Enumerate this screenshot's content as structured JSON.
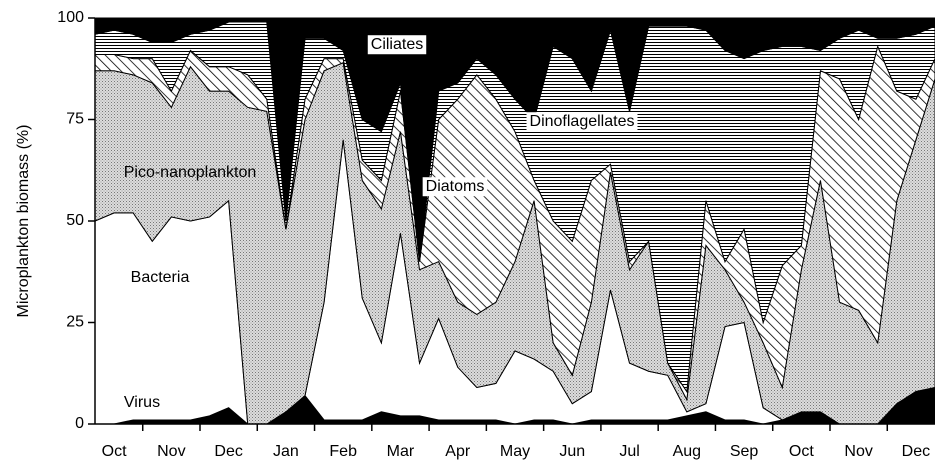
{
  "chart_data": {
    "type": "stacked-area",
    "y_label": "Microplankton biomass (%)",
    "categories": [
      null,
      "Oct",
      null,
      null,
      "Nov",
      null,
      null,
      "Dec",
      null,
      null,
      "Jan",
      null,
      null,
      "Feb",
      null,
      null,
      "Mar",
      null,
      null,
      "Apr",
      null,
      null,
      "May",
      null,
      null,
      "Jun",
      null,
      null,
      "Jul",
      null,
      null,
      "Aug",
      null,
      null,
      "Sep",
      null,
      null,
      "Oct",
      null,
      null,
      "Nov",
      null,
      null,
      "Dec",
      null
    ],
    "ylim": [
      0,
      100
    ],
    "yticks": [
      0,
      25,
      50,
      75,
      100
    ],
    "series": [
      {
        "name": "Virus",
        "color": "#000000",
        "fill": "solid",
        "values": [
          0,
          0,
          1,
          1,
          1,
          1,
          2,
          4,
          0,
          0,
          3,
          7,
          1,
          1,
          1,
          3,
          2,
          2,
          1,
          1,
          1,
          1,
          0,
          1,
          1,
          0,
          1,
          1,
          1,
          1,
          1,
          2,
          3,
          1,
          1,
          0,
          1,
          3,
          3,
          0,
          0,
          0,
          5,
          8,
          9
        ]
      },
      {
        "name": "Bacteria",
        "color": "#ffffff",
        "fill": "solid",
        "values": [
          50,
          52,
          51,
          44,
          50,
          49,
          49,
          51,
          0,
          0,
          0,
          0,
          29,
          69,
          30,
          17,
          45,
          13,
          25,
          13,
          8,
          9,
          18,
          15,
          12,
          5,
          7,
          32,
          14,
          12,
          11,
          1,
          2,
          23,
          24,
          4,
          0,
          0,
          0,
          0,
          0,
          0,
          0,
          0,
          0
        ]
      },
      {
        "name": "Pico-nanoplankton",
        "color": "#cfcfcf",
        "fill": "dots",
        "values": [
          37,
          35,
          34,
          39,
          27,
          38,
          31,
          27,
          78,
          77,
          45,
          68,
          57,
          19,
          29,
          33,
          25,
          23,
          14,
          16,
          18,
          20,
          22,
          39,
          7,
          7,
          22,
          29,
          23,
          32,
          3,
          3,
          39,
          14,
          5,
          16,
          8,
          35,
          57,
          30,
          28,
          20,
          50,
          62,
          76
        ]
      },
      {
        "name": "Diatoms",
        "color": "#000000",
        "fill": "diagonal",
        "values": [
          4,
          4,
          4,
          6,
          4,
          4,
          6,
          6,
          8,
          3,
          0,
          5,
          3,
          1,
          5,
          7,
          10,
          2,
          35,
          50,
          59,
          50,
          32,
          5,
          30,
          33,
          30,
          2,
          2,
          0,
          0,
          2,
          11,
          2,
          18,
          5,
          30,
          6,
          27,
          55,
          47,
          73,
          27,
          10,
          5
        ]
      },
      {
        "name": "Dinoflagellates",
        "color": "#000000",
        "fill": "horizontal",
        "values": [
          5,
          6,
          6,
          4,
          12,
          4,
          9,
          11,
          13,
          19,
          2,
          15,
          5,
          2,
          10,
          12,
          2,
          0,
          7,
          4,
          4,
          6,
          8,
          15,
          43,
          45,
          22,
          33,
          37,
          53,
          83,
          90,
          42,
          52,
          42,
          67,
          54,
          49,
          5,
          10,
          22,
          2,
          13,
          16,
          8
        ]
      },
      {
        "name": "Ciliates",
        "color": "#000000",
        "fill": "solid",
        "values": [
          4,
          3,
          4,
          6,
          6,
          4,
          3,
          1,
          1,
          1,
          50,
          5,
          5,
          8,
          25,
          28,
          16,
          60,
          18,
          16,
          10,
          14,
          20,
          25,
          7,
          10,
          18,
          3,
          23,
          2,
          2,
          2,
          3,
          8,
          10,
          8,
          7,
          7,
          8,
          5,
          3,
          5,
          5,
          4,
          2
        ]
      }
    ]
  }
}
